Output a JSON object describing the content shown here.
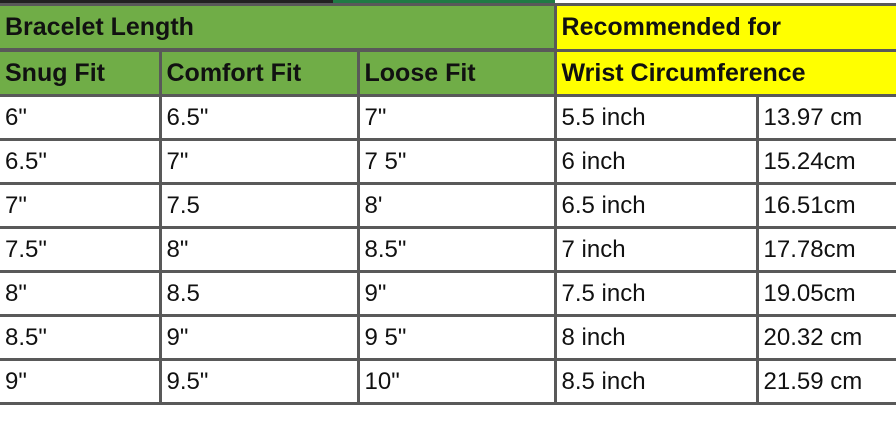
{
  "colors": {
    "header_green": "#70ad47",
    "header_yellow": "#ffff00",
    "grid": "#595959"
  },
  "header": {
    "bracelet_length": "Bracelet Length",
    "recommended_for": "Recommended for",
    "snug_fit": "Snug Fit",
    "comfort_fit": "Comfort Fit",
    "loose_fit": "Loose Fit",
    "wrist_circumference": "Wrist Circumference"
  },
  "rows": [
    [
      "6\"",
      "6.5\"",
      "7\"",
      "5.5 inch",
      "13.97 cm"
    ],
    [
      "6.5\"",
      "7\"",
      "7 5\"",
      "6 inch",
      "15.24cm"
    ],
    [
      "7\"",
      "7.5",
      "8'",
      "6.5 inch",
      "16.51cm"
    ],
    [
      "7.5\"",
      "8\"",
      "8.5\"",
      "7 inch",
      "17.78cm"
    ],
    [
      "8\"",
      "8.5",
      "9\"",
      "7.5 inch",
      "19.05cm"
    ],
    [
      "8.5\"",
      "9\"",
      "9 5\"",
      "8 inch",
      "20.32 cm"
    ],
    [
      "9\"",
      "9.5\"",
      "10\"",
      "8.5 inch",
      "21.59 cm"
    ]
  ]
}
